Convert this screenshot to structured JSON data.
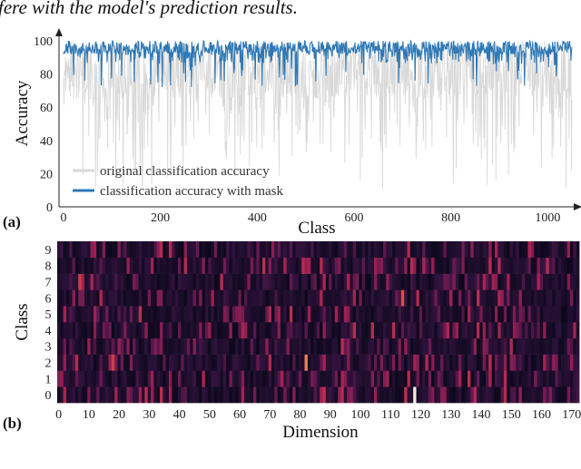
{
  "caption_fragment": "fere with the model's prediction results.",
  "chart_data": [
    {
      "panel_label": "(a)",
      "type": "line",
      "xlabel": "Class",
      "ylabel": "Accuracy",
      "xlim": [
        0,
        1050
      ],
      "ylim": [
        0,
        100
      ],
      "x_ticks": [
        0,
        200,
        400,
        600,
        800,
        1000
      ],
      "y_ticks": [
        0,
        20,
        40,
        60,
        80,
        100
      ],
      "legend_position": "lower-left",
      "grid": false,
      "series": [
        {
          "name": "original classification accuracy",
          "color": "#d9d9d9",
          "x_range": [
            0,
            1050
          ],
          "typical_range": [
            55,
            100
          ],
          "min_dip": 5
        },
        {
          "name": "classification accuracy with mask",
          "color": "#2f78b5",
          "x_range": [
            0,
            1050
          ],
          "typical_range": [
            85,
            100
          ],
          "min_dip": 70
        }
      ]
    },
    {
      "panel_label": "(b)",
      "type": "heatmap",
      "xlabel": "Dimension",
      "ylabel": "Class",
      "rows": [
        "0",
        "1",
        "2",
        "3",
        "4",
        "5",
        "6",
        "7",
        "8",
        "9"
      ],
      "x_ticks": [
        0,
        10,
        20,
        30,
        40,
        50,
        60,
        70,
        80,
        90,
        100,
        110,
        120,
        130,
        140,
        150,
        160,
        170
      ],
      "n_dimensions": 173,
      "colormap": "rocket",
      "colorbar": false,
      "hotspots": [
        {
          "row": 0,
          "dim": 118,
          "value": 1.0
        },
        {
          "row": 2,
          "dim": 82,
          "value": 0.85
        },
        {
          "row": 2,
          "dim": 18,
          "value": 0.7
        },
        {
          "row": 7,
          "dim": 7,
          "value": 0.7
        },
        {
          "row": 6,
          "dim": 114,
          "value": 0.75
        },
        {
          "row": 5,
          "dim": 27,
          "value": 0.65
        },
        {
          "row": 7,
          "dim": 141,
          "value": 0.6
        },
        {
          "row": 4,
          "dim": 61,
          "value": 0.6
        }
      ]
    }
  ]
}
